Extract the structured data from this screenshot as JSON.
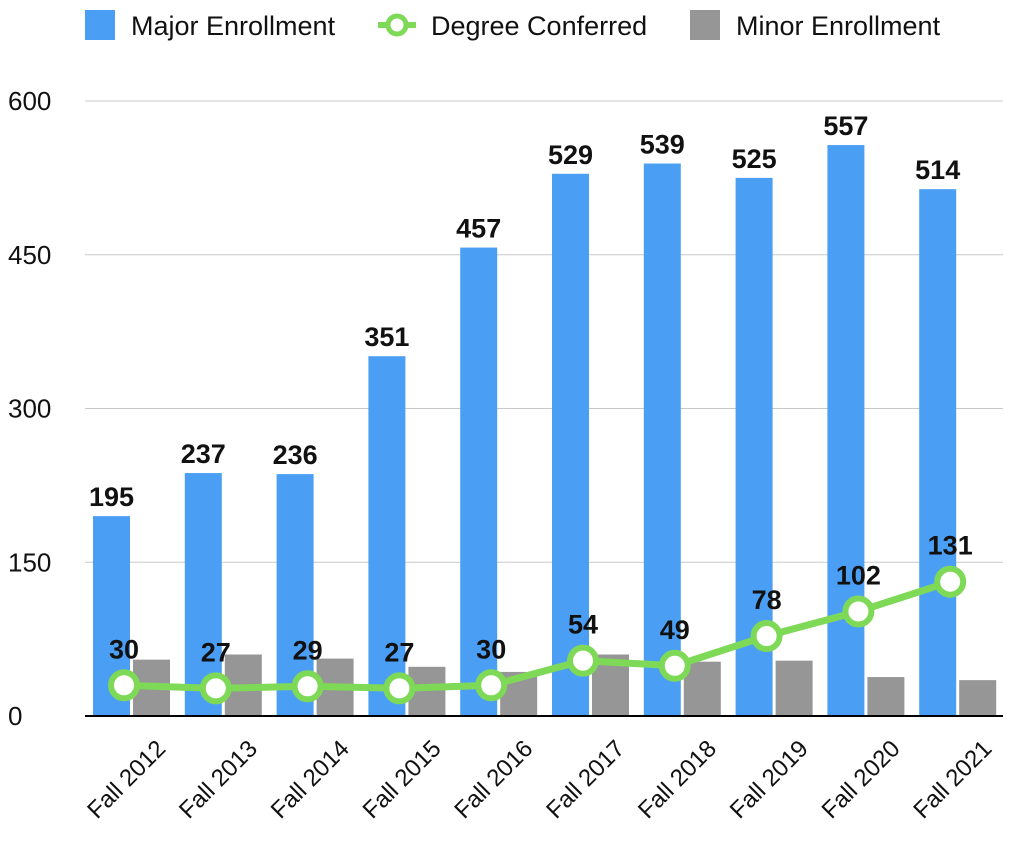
{
  "chart_data": {
    "type": "bar",
    "categories": [
      "Fall 2012",
      "Fall 2013",
      "Fall 2014",
      "Fall 2015",
      "Fall 2016",
      "Fall 2017",
      "Fall 2018",
      "Fall 2019",
      "Fall 2020",
      "Fall 2021"
    ],
    "series": [
      {
        "name": "Major Enrollment",
        "kind": "bar",
        "color": "#4a9ff5",
        "values": [
          195,
          237,
          236,
          351,
          457,
          529,
          539,
          525,
          557,
          514
        ],
        "data_labels": true
      },
      {
        "name": "Degree Conferred",
        "kind": "line",
        "color": "#7ed957",
        "values": [
          30,
          27,
          29,
          27,
          30,
          54,
          49,
          78,
          102,
          131
        ],
        "data_labels": true
      },
      {
        "name": "Minor Enrollment",
        "kind": "bar",
        "color": "#969696",
        "values": [
          55,
          60,
          56,
          48,
          43,
          60,
          53,
          54,
          38,
          35
        ],
        "data_labels": false
      }
    ],
    "yticks": [
      0,
      150,
      300,
      450,
      600
    ],
    "ylim": [
      0,
      600
    ],
    "grid": true,
    "legend": "top",
    "title": "",
    "xlabel": "",
    "ylabel": ""
  }
}
